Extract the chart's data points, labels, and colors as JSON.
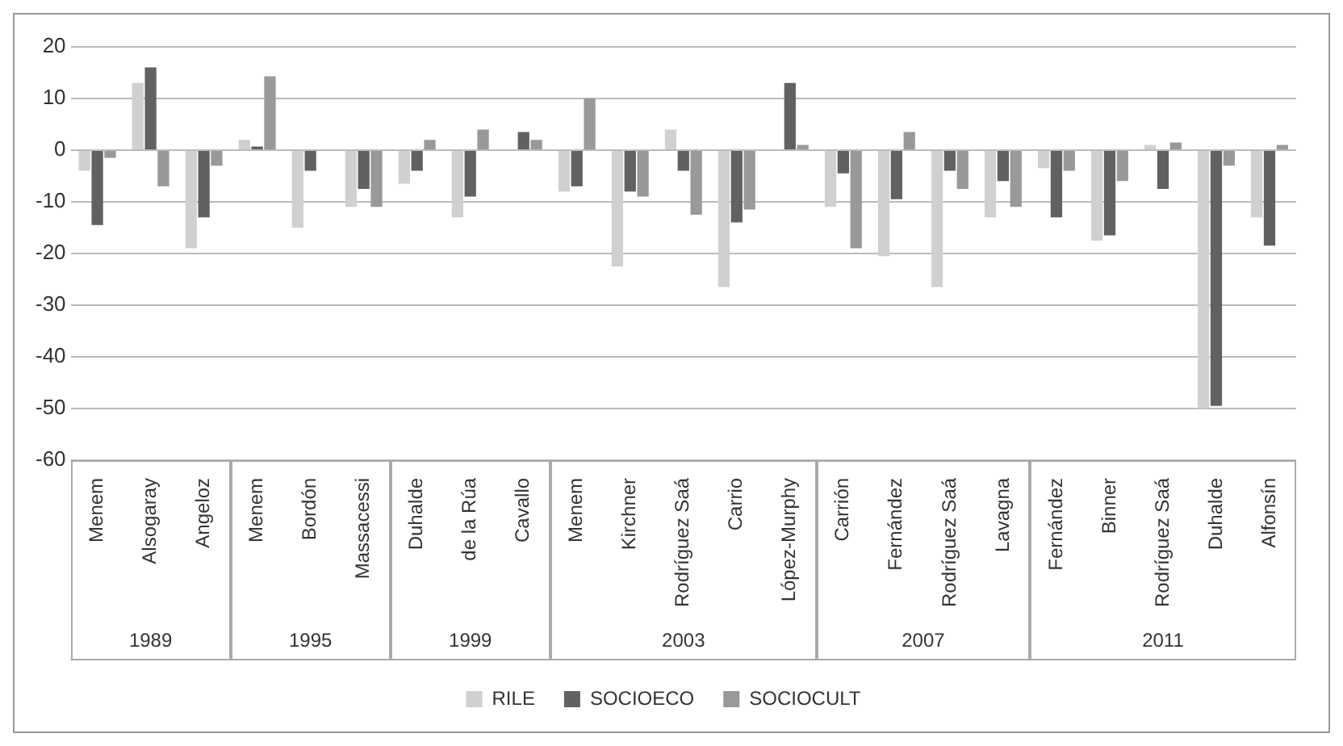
{
  "chart_data": {
    "type": "bar",
    "categories": [
      "Menem",
      "Alsogaray",
      "Angeloz",
      "Menem",
      "Bordón",
      "Massacessi",
      "Duhalde",
      "de la Rúa",
      "Cavallo",
      "Menem",
      "Kirchner",
      "Rodríguez Saá",
      "Carrio",
      "López-Murphy",
      "Carrión",
      "Fernández",
      "Rodríguez Saá",
      "Lavagna",
      "Fernández",
      "Binner",
      "Rodríguez Saá",
      "Duhalde",
      "Alfonsín"
    ],
    "series": [
      {
        "name": "RILE",
        "color": "#d0d0d0",
        "values": [
          -4,
          13,
          -19,
          2,
          -15,
          -11,
          -6.5,
          -13,
          0,
          -8,
          -22.5,
          4,
          -26.5,
          0,
          -11,
          -20.5,
          -26.5,
          -13,
          -3.5,
          -17.5,
          1,
          -50,
          -13
        ]
      },
      {
        "name": "SOCIOECO",
        "color": "#616161",
        "values": [
          -14.5,
          16,
          -13,
          0.7,
          -4,
          -7.5,
          -4,
          -9,
          3.5,
          -7,
          -8,
          -4,
          -14,
          13,
          -4.5,
          -9.5,
          -4,
          -6,
          -13,
          -16.5,
          -7.5,
          -49.5,
          -18.5
        ]
      },
      {
        "name": "SOCIOCULT",
        "color": "#999999",
        "values": [
          -1.5,
          -7,
          -3,
          14.3,
          0,
          -11,
          2,
          4,
          2,
          10,
          -9,
          -12.5,
          -11.5,
          1,
          -19,
          3.5,
          -7.5,
          -11,
          -4,
          -6,
          1.5,
          -3,
          1
        ]
      }
    ],
    "annotations": [
      "1989",
      "1995",
      "1999",
      "2003",
      "2007",
      "2011"
    ],
    "ylim": [
      -60,
      20
    ],
    "yticks": [
      -60,
      -50,
      -40,
      -30,
      -20,
      -10,
      0,
      10,
      20
    ],
    "grid": "y",
    "legend": "bottom"
  }
}
